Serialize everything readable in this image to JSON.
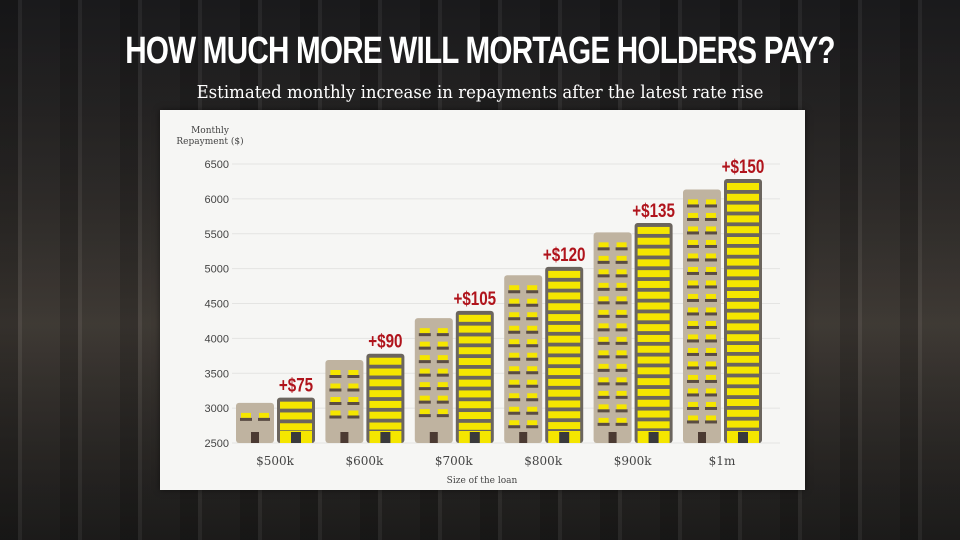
{
  "title": "HOW MUCH MORE WILL MORTAGE HOLDERS PAY?",
  "subtitle": "Estimated monthly increase in repayments after the latest rate rise",
  "chart_data": {
    "type": "bar",
    "ylabel_lines": [
      "Monthly",
      "Repayment ($)"
    ],
    "xlabel": "Size of the loan",
    "ylim": [
      2500,
      6500
    ],
    "yticks": [
      2500,
      3000,
      3500,
      4000,
      4500,
      5000,
      5500,
      6000,
      6500
    ],
    "categories": [
      "$500k",
      "$600k",
      "$700k",
      "$800k",
      "$900k",
      "$1m"
    ],
    "series": [
      {
        "values": [
          3075,
          3690,
          4290,
          4905,
          5520,
          6135
        ]
      },
      {
        "values": [
          3150,
          3780,
          4395,
          5025,
          5655,
          6285
        ]
      }
    ],
    "annotations": [
      "+$75",
      "+$90",
      "+$105",
      "+$120",
      "+$135",
      "+$150"
    ],
    "grid": true,
    "colors": {
      "before": "#bfb3a0",
      "after": "#f5e600",
      "outline": "#6b655e",
      "annotation": "#b0141c",
      "text": "#444444"
    }
  }
}
